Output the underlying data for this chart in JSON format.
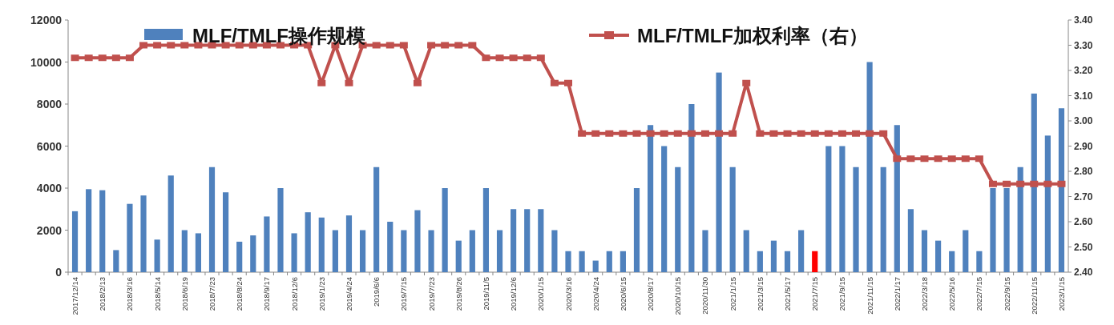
{
  "chart_data": {
    "type": "bar",
    "categories": [
      "2017/12/14",
      null,
      "2018/2/13",
      null,
      "2018/3/16",
      null,
      "2018/5/14",
      null,
      "2018/6/19",
      null,
      "2018/7/23",
      null,
      "2018/8/24",
      null,
      "2018/9/17",
      null,
      "2018/12/6",
      null,
      "2019/1/23",
      null,
      "2019/4/24",
      null,
      "2019/6/6",
      null,
      "2019/7/15",
      null,
      "2019/7/23",
      null,
      "2019/8/26",
      null,
      "2019/11/5",
      null,
      "2019/12/6",
      null,
      "2020/1/15",
      null,
      "2020/3/16",
      null,
      "2020/4/24",
      null,
      "2020/6/15",
      null,
      "2020/8/17",
      null,
      "2020/10/15",
      null,
      "2020/11/30",
      null,
      "2021/1/15",
      null,
      "2021/3/15",
      null,
      "2021/5/17",
      null,
      "2021/7/15",
      null,
      "2021/9/15",
      null,
      "2021/11/15",
      null,
      "2022/1/17",
      null,
      "2022/3/18",
      null,
      "2022/5/16",
      null,
      "2022/7/15",
      null,
      "2022/9/15",
      null,
      "2022/11/15",
      null,
      "2023/1/15"
    ],
    "series": [
      {
        "name": "MLF/TMLF操作规模",
        "color": "#4f81bd",
        "colors": [
          "#4f81bd",
          "#4f81bd",
          "#4f81bd",
          "#4f81bd",
          "#4f81bd",
          "#4f81bd",
          "#4f81bd",
          "#4f81bd",
          "#4f81bd",
          "#4f81bd",
          "#4f81bd",
          "#4f81bd",
          "#4f81bd",
          "#4f81bd",
          "#4f81bd",
          "#4f81bd",
          "#4f81bd",
          "#4f81bd",
          "#4f81bd",
          "#4f81bd",
          "#4f81bd",
          "#4f81bd",
          "#4f81bd",
          "#4f81bd",
          "#4f81bd",
          "#4f81bd",
          "#4f81bd",
          "#4f81bd",
          "#4f81bd",
          "#4f81bd",
          "#4f81bd",
          "#4f81bd",
          "#4f81bd",
          "#4f81bd",
          "#4f81bd",
          "#4f81bd",
          "#4f81bd",
          "#4f81bd",
          "#4f81bd",
          "#4f81bd",
          "#4f81bd",
          "#4f81bd",
          "#4f81bd",
          "#4f81bd",
          "#4f81bd",
          "#4f81bd",
          "#4f81bd",
          "#4f81bd",
          "#4f81bd",
          "#4f81bd",
          "#4f81bd",
          "#4f81bd",
          "#4f81bd",
          "#4f81bd",
          "#ff0000",
          "#4f81bd",
          "#4f81bd",
          "#4f81bd",
          "#4f81bd",
          "#4f81bd",
          "#4f81bd",
          "#4f81bd",
          "#4f81bd",
          "#4f81bd",
          "#4f81bd",
          "#4f81bd",
          "#4f81bd",
          "#4f81bd",
          "#4f81bd",
          "#4f81bd",
          "#4f81bd",
          "#4f81bd",
          "#4f81bd"
        ],
        "values": [
          2900,
          3950,
          3900,
          1050,
          3250,
          3650,
          1550,
          4600,
          2000,
          1850,
          5000,
          3800,
          1450,
          1750,
          2650,
          4000,
          1850,
          2850,
          2600,
          2000,
          2700,
          2000,
          5000,
          2400,
          2000,
          2950,
          2000,
          4000,
          1500,
          2000,
          4000,
          2000,
          3000,
          3000,
          3000,
          2000,
          1000,
          1000,
          550,
          1000,
          1000,
          4000,
          7000,
          6000,
          5000,
          8000,
          2000,
          9500,
          5000,
          2000,
          1000,
          1500,
          1000,
          2000,
          1000,
          6000,
          6000,
          5000,
          10000,
          5000,
          7000,
          3000,
          2000,
          1500,
          1000,
          2000,
          1000,
          4000,
          4000,
          5000,
          8500,
          6500,
          7800
        ]
      },
      {
        "name": "MLF/TMLF加权利率（右）",
        "type": "line",
        "axis": "y2",
        "marker": "square",
        "color": "#c0504d",
        "values": [
          3.25,
          3.25,
          3.25,
          3.25,
          3.25,
          3.3,
          3.3,
          3.3,
          3.3,
          3.3,
          3.3,
          3.3,
          3.3,
          3.3,
          3.3,
          3.3,
          3.3,
          3.3,
          3.15,
          3.3,
          3.15,
          3.3,
          3.3,
          3.3,
          3.3,
          3.15,
          3.3,
          3.3,
          3.3,
          3.3,
          3.25,
          3.25,
          3.25,
          3.25,
          3.25,
          3.15,
          3.15,
          2.95,
          2.95,
          2.95,
          2.95,
          2.95,
          2.95,
          2.95,
          2.95,
          2.95,
          2.95,
          2.95,
          2.95,
          3.15,
          2.95,
          2.95,
          2.95,
          2.95,
          2.95,
          2.95,
          2.95,
          2.95,
          2.95,
          2.95,
          2.85,
          2.85,
          2.85,
          2.85,
          2.85,
          2.85,
          2.85,
          2.75,
          2.75,
          2.75,
          2.75,
          2.75,
          2.75
        ]
      }
    ],
    "ylim": [
      0,
      12000
    ],
    "yticks": [
      0,
      2000,
      4000,
      6000,
      8000,
      10000,
      12000
    ],
    "y2lim": [
      2.4,
      3.4
    ],
    "y2ticks": [
      {
        "value": 2.4,
        "label": "2.40"
      },
      {
        "value": 2.5,
        "label": "2.50"
      },
      {
        "value": 2.6,
        "label": "2.60"
      },
      {
        "value": 2.7,
        "label": "2.70"
      },
      {
        "value": 2.8,
        "label": "2.80"
      },
      {
        "value": 2.9,
        "label": "2.90"
      },
      {
        "value": 3.0,
        "label": "3.00"
      },
      {
        "value": 3.1,
        "label": "3.10"
      },
      {
        "value": 3.2,
        "label": "3.20"
      },
      {
        "value": 3.3,
        "label": "3.30"
      },
      {
        "value": 3.4,
        "label": "3.40"
      }
    ],
    "legend": "top"
  }
}
